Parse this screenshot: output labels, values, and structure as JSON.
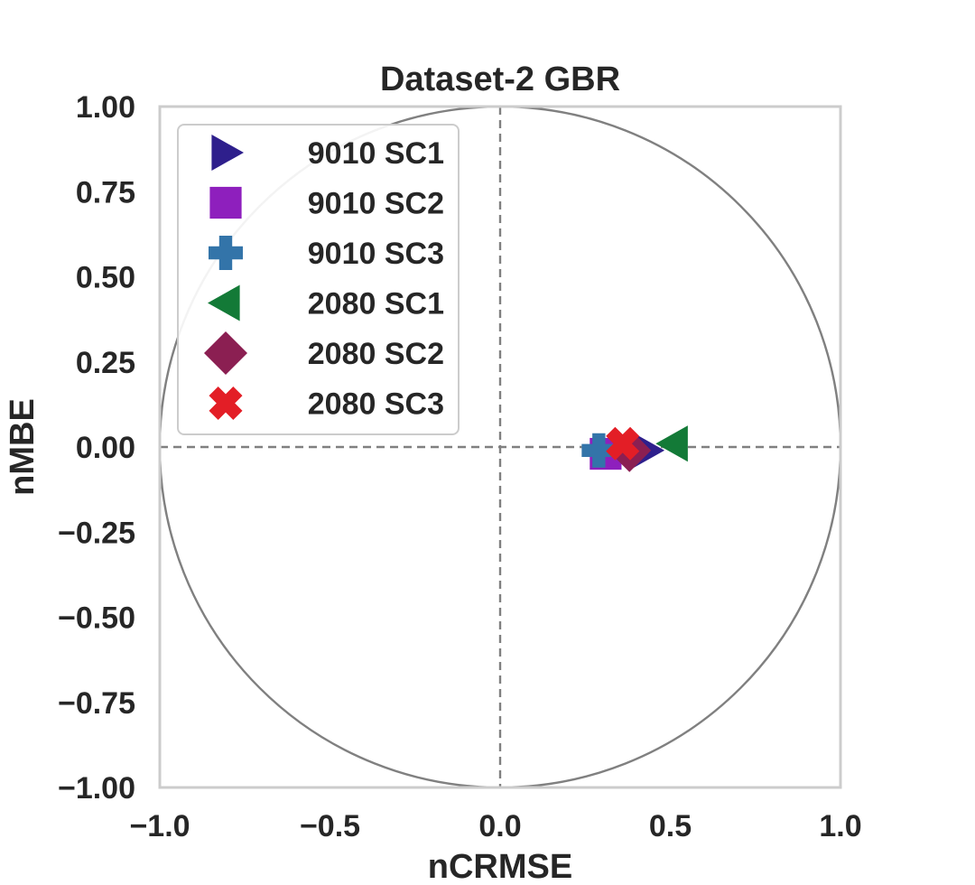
{
  "chart_data": {
    "type": "scatter",
    "title": "Dataset-2 GBR",
    "xlabel": "nCRMSE",
    "ylabel": "nMBE",
    "xlim": [
      -1.0,
      1.0
    ],
    "ylim": [
      -1.0,
      1.0
    ],
    "x_ticks": [
      "−1.0",
      "−0.5",
      "0.0",
      "0.5",
      "1.0"
    ],
    "x_tick_values": [
      -1.0,
      -0.5,
      0.0,
      0.5,
      1.0
    ],
    "y_ticks": [
      "1.00",
      "0.75",
      "0.50",
      "0.25",
      "0.00",
      "−0.25",
      "−0.50",
      "−0.75",
      "−1.00"
    ],
    "y_tick_values": [
      1.0,
      0.75,
      0.5,
      0.25,
      0.0,
      -0.25,
      -0.5,
      -0.75,
      -1.0
    ],
    "grid": false,
    "reference_circle_radius": 1.0,
    "reference_lines": [
      "x=0",
      "y=0"
    ],
    "legend_position": "top-left",
    "series": [
      {
        "name": "9010 SC1",
        "marker": "triangle-right",
        "color": "#2e1f8c",
        "x": 0.43,
        "y": -0.01
      },
      {
        "name": "9010 SC2",
        "marker": "square",
        "color": "#8e1fbd",
        "x": 0.31,
        "y": -0.02
      },
      {
        "name": "9010 SC3",
        "marker": "plus",
        "color": "#3374a9",
        "x": 0.29,
        "y": -0.01
      },
      {
        "name": "2080 SC1",
        "marker": "triangle-left",
        "color": "#137a37",
        "x": 0.51,
        "y": 0.01
      },
      {
        "name": "2080 SC2",
        "marker": "diamond",
        "color": "#8b1f52",
        "x": 0.38,
        "y": -0.01
      },
      {
        "name": "2080 SC3",
        "marker": "x",
        "color": "#e31e26",
        "x": 0.36,
        "y": 0.01
      }
    ]
  }
}
